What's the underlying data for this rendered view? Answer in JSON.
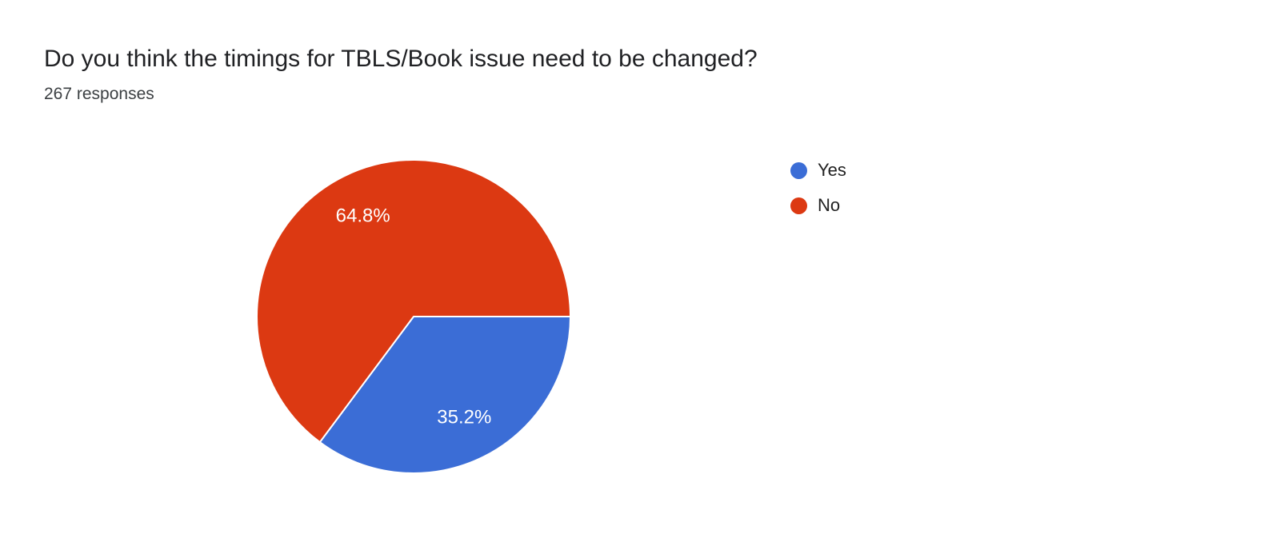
{
  "chart_data": {
    "type": "pie",
    "title": "Do you think the timings for TBLS/Book issue need to be changed?",
    "responses_label": "267 responses",
    "responses_count": 267,
    "legend_position": "right",
    "start_angle_deg": 90,
    "label_color": "#ffffff",
    "slice_border_color": "#ffffff",
    "slices": [
      {
        "label": "Yes",
        "value": 35.2,
        "display": "35.2%",
        "color": "#3b6dd6"
      },
      {
        "label": "No",
        "value": 64.8,
        "display": "64.8%",
        "color": "#dc3912"
      }
    ]
  }
}
